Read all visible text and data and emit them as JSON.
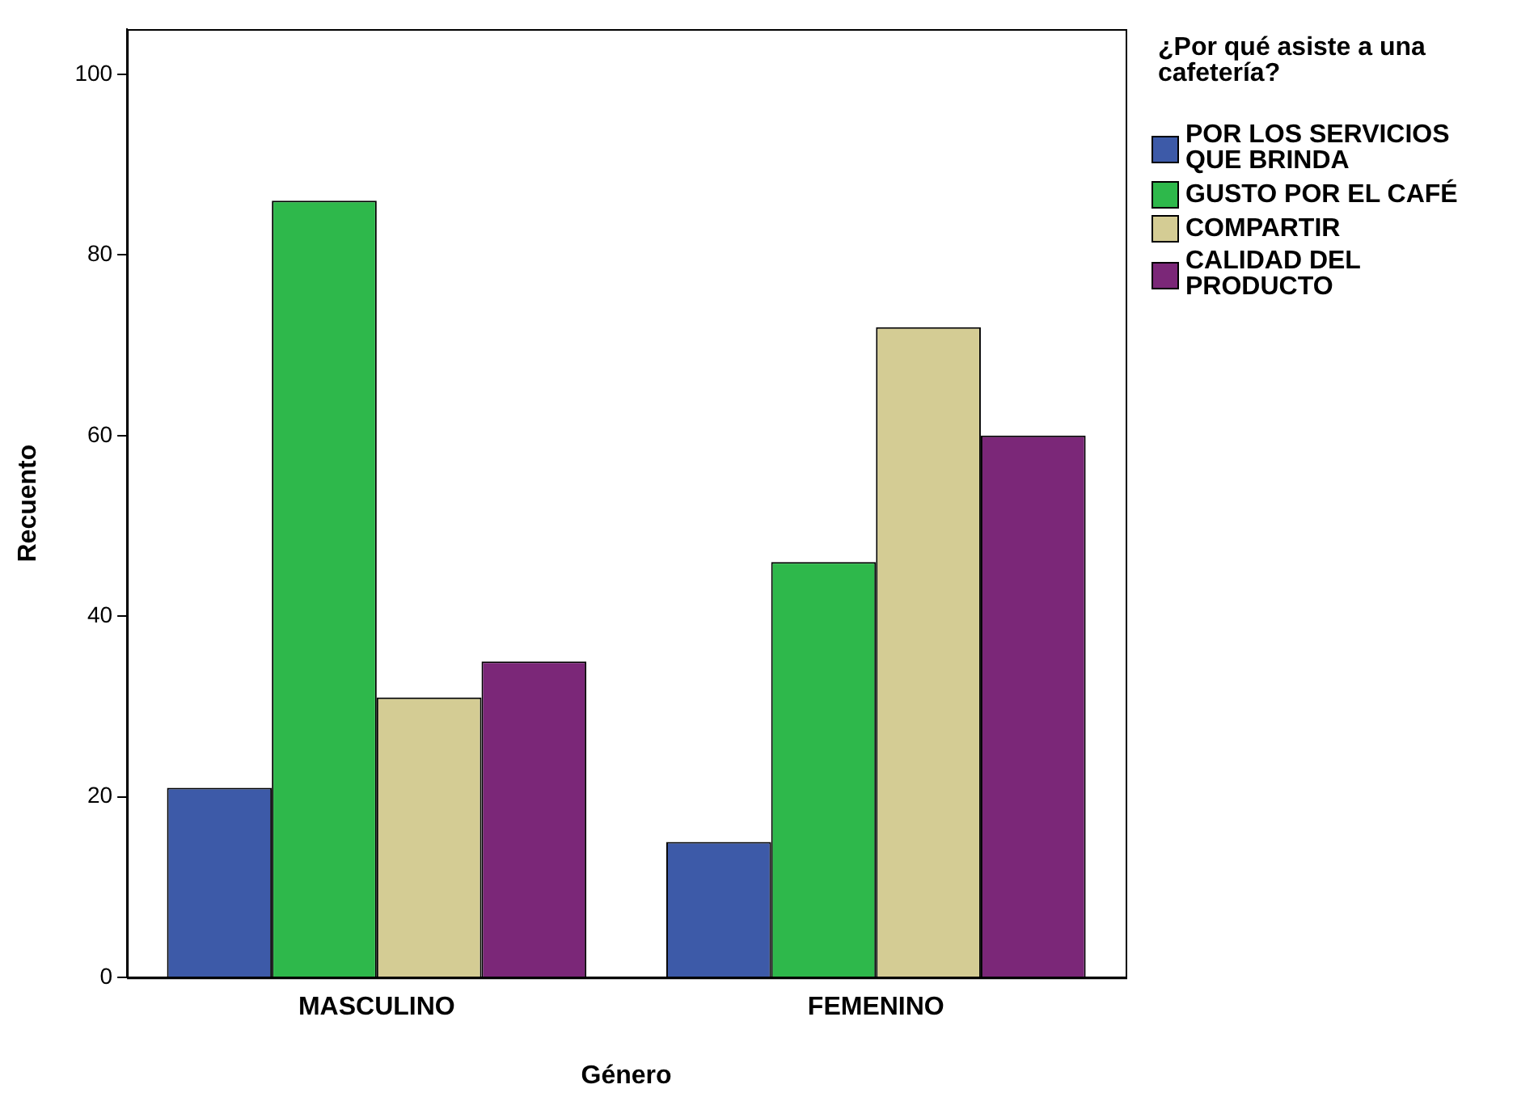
{
  "chart_data": {
    "type": "bar",
    "xlabel": "Género",
    "ylabel": "Recuento",
    "legend_title": "¿Por qué asiste a una cafetería?",
    "categories": [
      "MASCULINO",
      "FEMENINO"
    ],
    "series": [
      {
        "name": "POR LOS SERVICIOS QUE BRINDA",
        "color": "#3d5aa8",
        "values": [
          21,
          15
        ]
      },
      {
        "name": "GUSTO POR EL CAFÉ",
        "color": "#2eb84b",
        "values": [
          86,
          46
        ]
      },
      {
        "name": "COMPARTIR",
        "color": "#d4cc94",
        "values": [
          31,
          72
        ]
      },
      {
        "name": "CALIDAD DEL PRODUCTO",
        "color": "#7b2778",
        "values": [
          35,
          60
        ]
      }
    ],
    "ylim": [
      0,
      105
    ],
    "yticks": [
      0,
      20,
      40,
      60,
      80,
      100
    ],
    "grid": false,
    "legend": "top right"
  }
}
